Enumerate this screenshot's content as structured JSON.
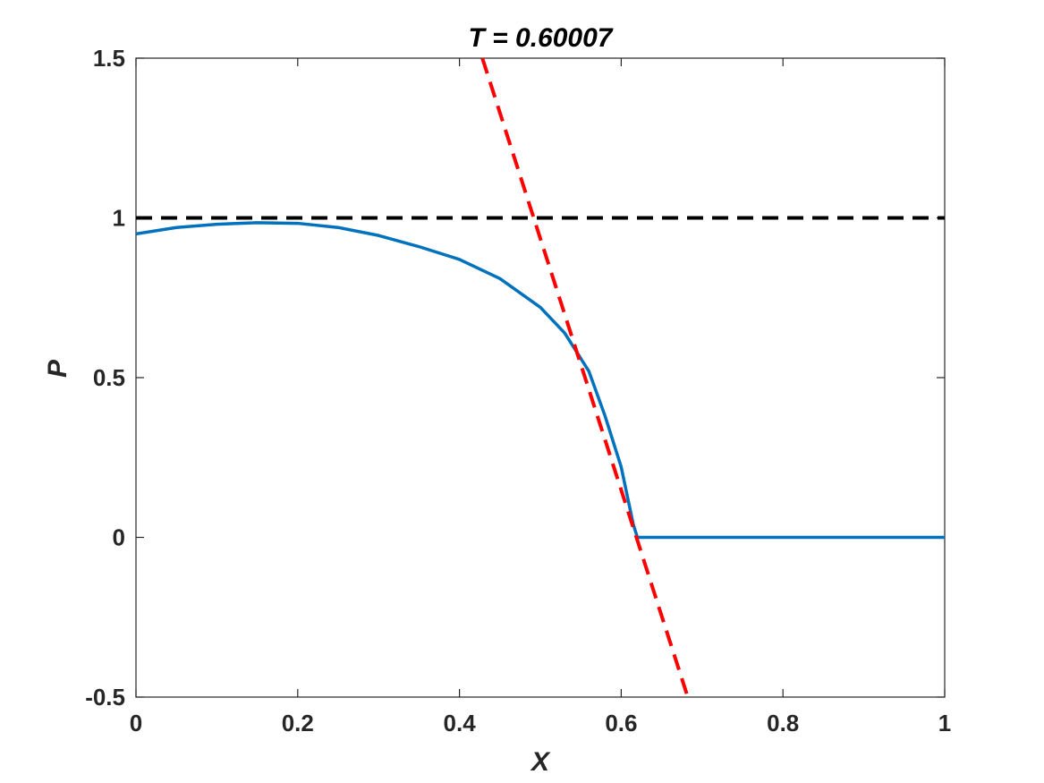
{
  "chart_data": {
    "type": "line",
    "title": "T = 0.60007",
    "xlabel": "X",
    "ylabel": "P",
    "xlim": [
      0,
      1
    ],
    "ylim": [
      -0.5,
      1.5
    ],
    "xticks": [
      0,
      0.2,
      0.4,
      0.6,
      0.8,
      1
    ],
    "xtick_labels": [
      "0",
      "0.2",
      "0.4",
      "0.6",
      "0.8",
      "1"
    ],
    "yticks": [
      -0.5,
      0,
      0.5,
      1,
      1.5
    ],
    "ytick_labels": [
      "-0.5",
      "0",
      "0.5",
      "1",
      "1.5"
    ],
    "grid": false,
    "series": [
      {
        "color": "#0072BD",
        "style": "solid",
        "x": [
          0,
          0.05,
          0.1,
          0.15,
          0.2,
          0.25,
          0.3,
          0.35,
          0.4,
          0.45,
          0.5,
          0.53,
          0.56,
          0.58,
          0.6,
          0.615,
          0.62,
          0.7,
          0.8,
          0.9,
          1.0
        ],
        "y": [
          0.95,
          0.97,
          0.98,
          0.985,
          0.983,
          0.97,
          0.945,
          0.91,
          0.87,
          0.81,
          0.72,
          0.64,
          0.52,
          0.38,
          0.22,
          0.04,
          0.0,
          0.0,
          0.0,
          0.0,
          0.0
        ]
      },
      {
        "color": "#000000",
        "style": "dashed",
        "x": [
          0,
          1
        ],
        "y": [
          1,
          1
        ]
      },
      {
        "color": "#FF0000",
        "style": "dashed",
        "x": [
          0.4283,
          0.6823
        ],
        "y": [
          1.5,
          -0.5
        ]
      }
    ]
  }
}
